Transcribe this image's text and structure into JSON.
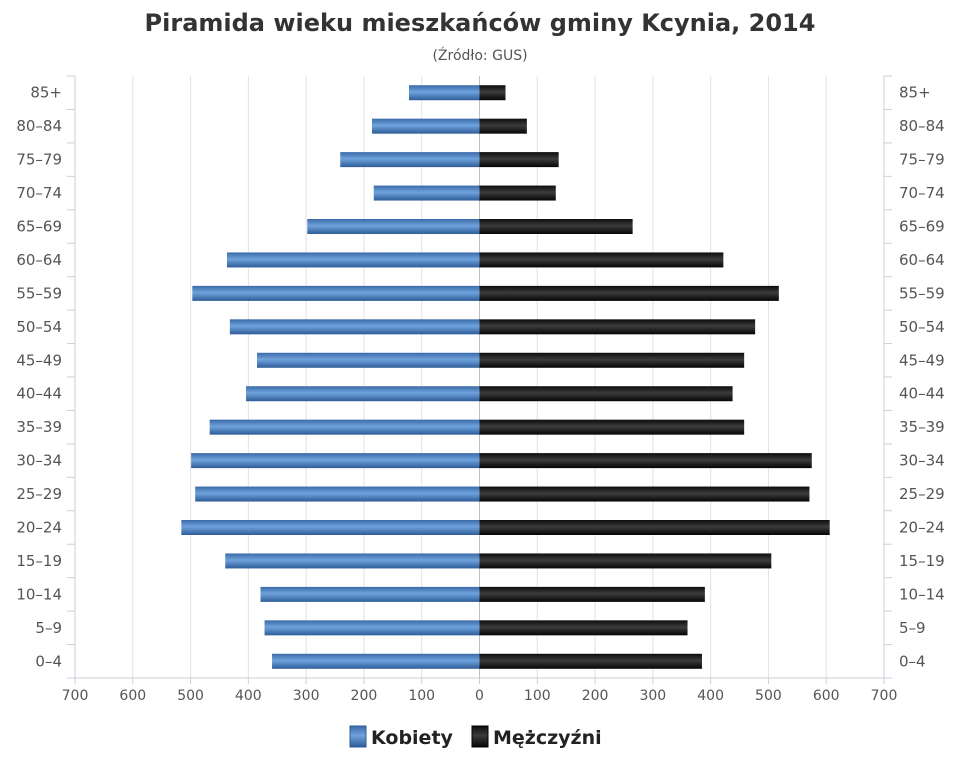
{
  "chart_data": {
    "type": "bar",
    "orientation": "horizontal-population-pyramid",
    "title": "Piramida wieku mieszkańców gminy Kcynia, 2014",
    "subtitle": "(Źródło: GUS)",
    "categories": [
      "85+",
      "80–84",
      "75–79",
      "70–74",
      "65–69",
      "60–64",
      "55–59",
      "50–54",
      "45–49",
      "40–44",
      "35–39",
      "30–34",
      "25–29",
      "20–24",
      "15–19",
      "10–14",
      "5–9",
      "0–4"
    ],
    "series": [
      {
        "name": "Kobiety",
        "side": "left",
        "color": "#4a7fbf",
        "values": [
          122,
          186,
          241,
          183,
          298,
          437,
          497,
          432,
          385,
          404,
          467,
          499,
          492,
          516,
          440,
          379,
          372,
          359
        ]
      },
      {
        "name": "Mężczyźni",
        "side": "right",
        "color": "#1a1a1a",
        "values": [
          45,
          82,
          137,
          132,
          265,
          422,
          518,
          477,
          458,
          438,
          458,
          575,
          571,
          606,
          505,
          390,
          360,
          385
        ]
      }
    ],
    "x_ticks": [
      "700",
      "600",
      "500",
      "400",
      "300",
      "200",
      "100",
      "0",
      "100",
      "200",
      "300",
      "400",
      "500",
      "600",
      "700"
    ],
    "xlim": [
      -700,
      700
    ],
    "grid": true,
    "legend": "bottom-center"
  }
}
